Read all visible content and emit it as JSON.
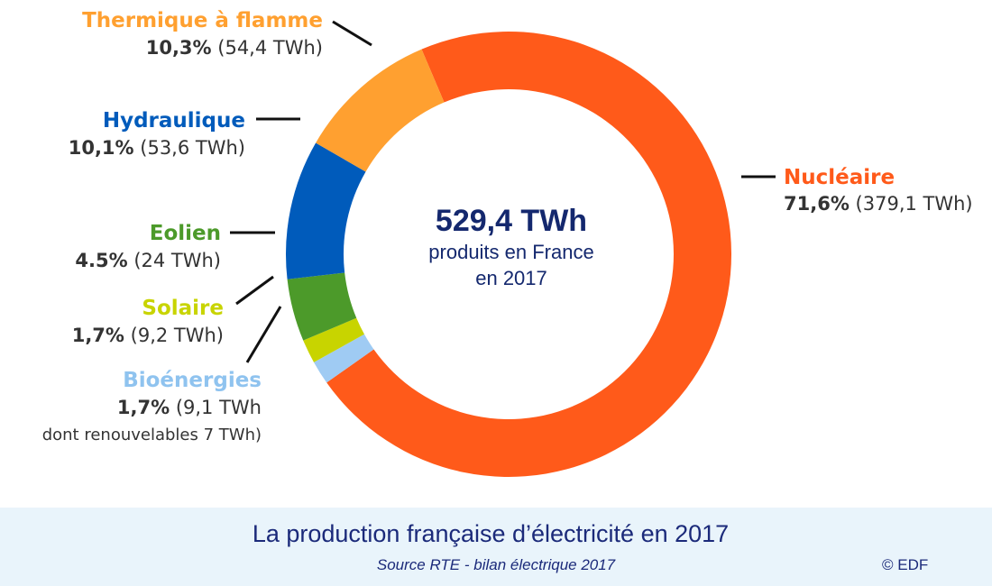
{
  "colors": {
    "nucleaire": "#ff5a1a",
    "thermique": "#ffa030",
    "hydraulique": "#005bbb",
    "eolien": "#4c9a2a",
    "solaire": "#c8d400",
    "bioenergies": "#9fcbf3",
    "dark_text": "#333333",
    "center_blue": "#14286e"
  },
  "center": {
    "total": "529,4 TWh",
    "line1": "produits en France",
    "line2": "en 2017"
  },
  "labels": {
    "thermique": {
      "name": "Thermique à flamme",
      "pct": "10,3%",
      "detail": "(54,4 TWh)"
    },
    "hydraulique": {
      "name": "Hydraulique",
      "pct": "10,1%",
      "detail": "(53,6 TWh)"
    },
    "eolien": {
      "name": "Eolien",
      "pct": "4.5%",
      "detail": "(24 TWh)"
    },
    "solaire": {
      "name": "Solaire",
      "pct": "1,7%",
      "detail": "(9,2 TWh)"
    },
    "bioenergies": {
      "name": "Bioénergies",
      "pct": "1,7%",
      "detail": "(9,1 TWh",
      "extra": "dont renouvelables 7 TWh)"
    },
    "nucleaire": {
      "name": "Nucléaire",
      "pct": "71,6%",
      "detail": "(379,1 TWh)"
    }
  },
  "footer": {
    "title": "La production française d’électricité en 2017",
    "source": "Source RTE - bilan électrique 2017",
    "copyright": "© EDF"
  },
  "chart_data": {
    "type": "pie",
    "variant": "donut",
    "start_angle_deg": -23,
    "direction": "clockwise",
    "unit": "TWh",
    "total": 529.4,
    "categories": [
      "Nucléaire",
      "Bioénergies",
      "Solaire",
      "Eolien",
      "Hydraulique",
      "Thermique à flamme"
    ],
    "values": [
      379.1,
      9.1,
      9.2,
      24,
      53.6,
      54.4
    ],
    "percentages": [
      71.6,
      1.7,
      1.7,
      4.5,
      10.1,
      10.3
    ],
    "series_keys": [
      "nucleaire",
      "bioenergies",
      "solaire",
      "eolien",
      "hydraulique",
      "thermique"
    ]
  }
}
